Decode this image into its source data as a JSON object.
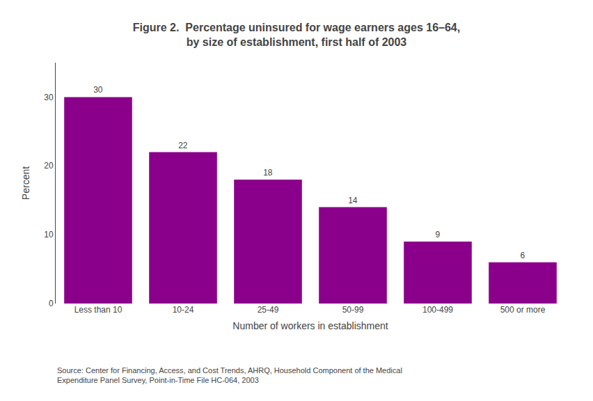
{
  "chart_data": {
    "type": "bar",
    "title": "Figure 2.  Percentage uninsured for wage earners ages 16–64,\nby size of establishment, first half of 2003",
    "categories": [
      "Less than 10",
      "10-24",
      "25-49",
      "50-99",
      "100-499",
      "500 or more"
    ],
    "values": [
      30,
      22,
      18,
      14,
      9,
      6
    ],
    "color": "#8B008B",
    "xlabel": "Number of workers in establishment",
    "ylabel": "Percent",
    "ylim": [
      0,
      35
    ],
    "yticks": [
      0,
      10,
      20,
      30
    ],
    "grid": false,
    "data_labels": true,
    "annotations": [
      "Source: Center for Financing, Access, and Cost Trends, AHRQ, Household Component of the Medical\nExpenditure Panel Survey, Point-in-Time File HC-064, 2003"
    ]
  }
}
